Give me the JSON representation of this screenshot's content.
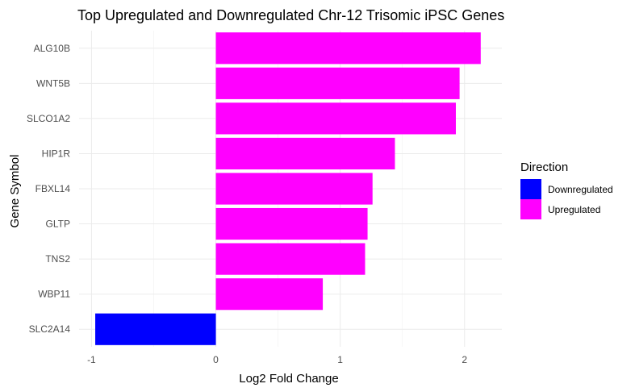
{
  "chart_data": {
    "type": "bar",
    "orientation": "horizontal",
    "title": "Top Upregulated and Downregulated Chr-12 Trisomic iPSC Genes",
    "xlabel": "Log2 Fold Change",
    "ylabel": "Gene Symbol",
    "xlim": [
      -1.1,
      2.3
    ],
    "x_ticks": [
      -1,
      0,
      1,
      2
    ],
    "x_tick_labels": [
      "-1",
      "0",
      "1",
      "2"
    ],
    "grid": true,
    "legend_position": "right",
    "legend": {
      "title": "Direction",
      "entries": [
        {
          "label": "Downregulated",
          "color": "#0000FF"
        },
        {
          "label": "Upregulated",
          "color": "#FF00FF"
        }
      ]
    },
    "categories": [
      "ALG10B",
      "WNT5B",
      "SLCO1A2",
      "HIP1R",
      "FBXL14",
      "GLTP",
      "TNS2",
      "WBP11",
      "SLC2A14"
    ],
    "values": [
      2.13,
      1.96,
      1.93,
      1.44,
      1.26,
      1.22,
      1.2,
      0.86,
      -0.97
    ],
    "direction": [
      "Upregulated",
      "Upregulated",
      "Upregulated",
      "Upregulated",
      "Upregulated",
      "Upregulated",
      "Upregulated",
      "Upregulated",
      "Downregulated"
    ]
  }
}
